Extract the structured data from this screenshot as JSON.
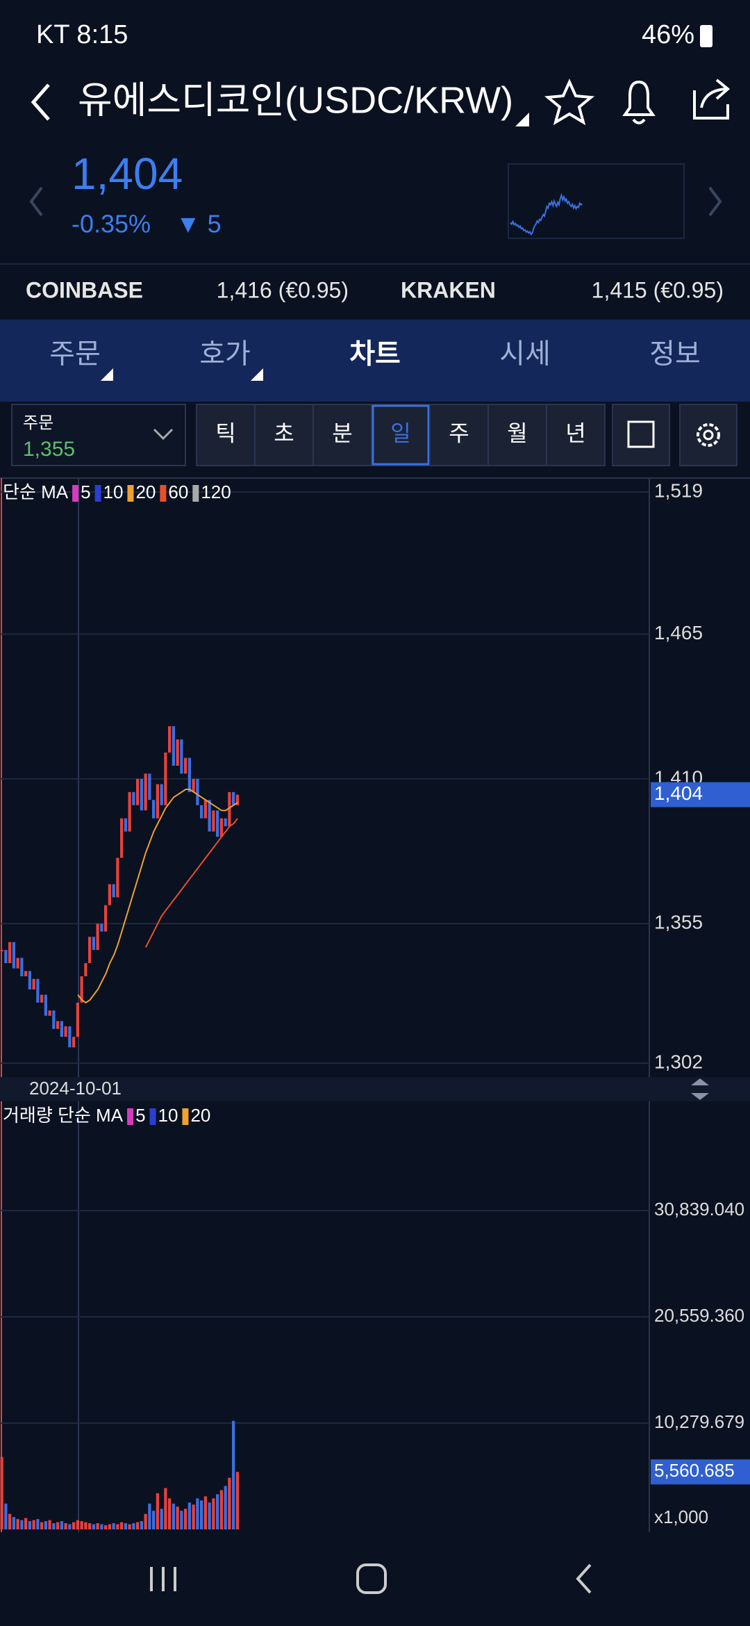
{
  "status_bar": {
    "carrier_time": "KT 8:15",
    "battery": "46%"
  },
  "header": {
    "title": "유에스디코인(USDC/KRW)"
  },
  "quote": {
    "price": "1,404",
    "change_pct": "-0.35%",
    "change": "▼ 5"
  },
  "exchanges": [
    {
      "name": "COINBASE",
      "price": "1,416 (€0.95)"
    },
    {
      "name": "KRAKEN",
      "price": "1,415 (€0.95)"
    }
  ],
  "tabs": [
    "주문",
    "호가",
    "차트",
    "시세",
    "정보"
  ],
  "active_tab": 2,
  "order_box": {
    "label": "주문",
    "value": "1,355"
  },
  "periods": [
    "틱",
    "초",
    "분",
    "일",
    "주",
    "월",
    "년"
  ],
  "active_period": 3,
  "chart_data": [
    {
      "type": "candle",
      "legend_title": "단순 MA",
      "date_label": "2024-10-01",
      "up_color": "#e8413c",
      "down_color": "#3b6fe0",
      "values": [
        1345,
        1340,
        1348,
        1338,
        1342,
        1335,
        1337,
        1330,
        1334,
        1325,
        1328,
        1320,
        1322,
        1315,
        1318,
        1312,
        1316,
        1308,
        1312,
        1325,
        1335,
        1340,
        1350,
        1345,
        1355,
        1352,
        1362,
        1370,
        1365,
        1380,
        1395,
        1390,
        1405,
        1400,
        1410,
        1398,
        1412,
        1402,
        1395,
        1408,
        1400,
        1420,
        1430,
        1415,
        1425,
        1412,
        1418,
        1405,
        1410,
        1400,
        1395,
        1402,
        1390,
        1398,
        1388,
        1395,
        1392,
        1405,
        1400,
        1404
      ],
      "ma": [
        {
          "name": "5",
          "color": "#d63bbf"
        },
        {
          "name": "10",
          "color": "#2a3fd0"
        },
        {
          "name": "20",
          "color": "#f0a030",
          "values": [
            null,
            null,
            null,
            null,
            null,
            null,
            null,
            null,
            null,
            null,
            null,
            null,
            null,
            null,
            null,
            null,
            null,
            null,
            null,
            1328,
            1326,
            1325,
            1326,
            1328,
            1330,
            1333,
            1336,
            1340,
            1343,
            1347,
            1352,
            1357,
            1362,
            1367,
            1372,
            1377,
            1382,
            1386,
            1390,
            1393,
            1396,
            1399,
            1401,
            1403,
            1404,
            1405,
            1406,
            1406,
            1405,
            1404,
            1403,
            1402,
            1401,
            1400,
            1399,
            1398,
            1398,
            1399,
            1400,
            1401
          ]
        },
        {
          "name": "60",
          "color": "#e8502a",
          "values": [
            null,
            null,
            null,
            null,
            null,
            null,
            null,
            null,
            null,
            null,
            null,
            null,
            null,
            null,
            null,
            null,
            null,
            null,
            null,
            null,
            null,
            null,
            null,
            null,
            null,
            null,
            null,
            null,
            null,
            null,
            null,
            null,
            null,
            null,
            null,
            null,
            1346,
            1349,
            1352,
            1355,
            1358,
            1360,
            1362,
            1364,
            1366,
            1368,
            1370,
            1372,
            1374,
            1376,
            1378,
            1380,
            1382,
            1384,
            1386,
            1388,
            1390,
            1392,
            1393,
            1395
          ]
        },
        {
          "name": "120",
          "color": "#aaaaaa"
        }
      ],
      "ylim": [
        1302,
        1519
      ],
      "yticks": [
        {
          "value": 1519,
          "label": "1,519"
        },
        {
          "value": 1465,
          "label": "1,465"
        },
        {
          "value": 1410,
          "label": "1,410"
        },
        {
          "value": 1355,
          "label": "1,355"
        },
        {
          "value": 1302,
          "label": "1,302"
        }
      ],
      "current": {
        "value": 1404,
        "label": "1,404"
      },
      "grid": true
    },
    {
      "type": "bar",
      "legend_title": "거래량 단순 MA",
      "ma": [
        {
          "name": "5",
          "color": "#d63bbf"
        },
        {
          "name": "10",
          "color": "#2a3fd0"
        },
        {
          "name": "20",
          "color": "#f0a030"
        }
      ],
      "values": [
        7000,
        2500,
        1500,
        1200,
        1000,
        900,
        1100,
        800,
        900,
        1000,
        700,
        800,
        900,
        600,
        700,
        800,
        600,
        500,
        700,
        900,
        800,
        700,
        600,
        500,
        600,
        500,
        400,
        500,
        600,
        500,
        700,
        600,
        500,
        600,
        700,
        800,
        1500,
        2500,
        1800,
        3500,
        2000,
        4000,
        3000,
        2500,
        2200,
        1800,
        2000,
        2600,
        2400,
        3000,
        2800,
        3200,
        2600,
        3000,
        3400,
        3800,
        4200,
        5000,
        10500,
        5560.685
      ],
      "ylim": [
        0,
        41400
      ],
      "yticks": [
        {
          "value": 10279.679,
          "label": "10,279.679"
        },
        {
          "value": 20559.36,
          "label": "20,559.360"
        },
        {
          "value": 30839.04,
          "label": "30,839.040"
        }
      ],
      "current": {
        "value": 5560.685,
        "label": "5,560.685"
      },
      "unit": "x1,000",
      "grid": true
    }
  ]
}
